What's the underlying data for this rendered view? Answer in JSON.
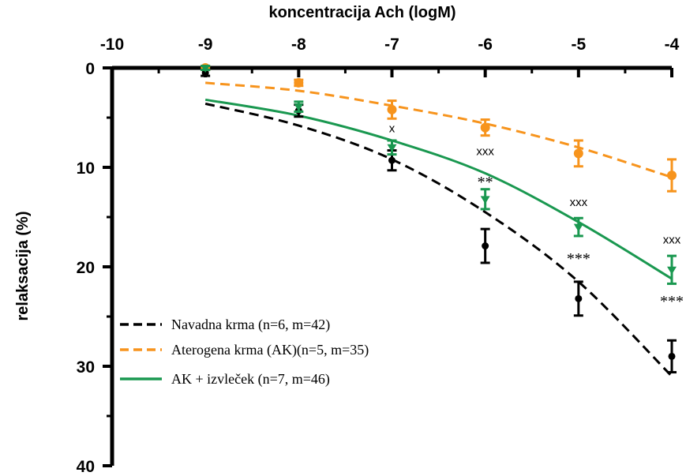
{
  "chart_data": {
    "type": "line",
    "xlabel": "koncentracija Ach (logM)",
    "ylabel": "relaksacija (%)",
    "xlim": [
      -10,
      -4
    ],
    "ylim": [
      0,
      40
    ],
    "y_inverted": true,
    "x_axis_position": "top",
    "xticks": [
      -10,
      -9,
      -8,
      -7,
      -6,
      -5,
      -4
    ],
    "yticks": [
      0,
      10,
      20,
      30,
      40
    ],
    "legend_position": "bottom-left",
    "series": [
      {
        "name": "Navadna krma (n=6, m=42)",
        "color": "#000000",
        "line_style": "dashed",
        "x": [
          -9,
          -8,
          -7,
          -6,
          -5,
          -4
        ],
        "y": [
          0.5,
          4.3,
          9.3,
          17.9,
          23.2,
          29.0
        ],
        "err": [
          0.3,
          0.6,
          1.0,
          1.7,
          1.7,
          1.6
        ],
        "fit_y": [
          3.6,
          5.8,
          9.2,
          14.5,
          21.5,
          31.0
        ]
      },
      {
        "name": "Aterogena krma (AK)(n=5, m=35)",
        "color": "#f7941d",
        "line_style": "dashed",
        "x": [
          -9,
          -8,
          -7,
          -6,
          -5,
          -4
        ],
        "y": [
          0.0,
          1.5,
          4.2,
          6.0,
          8.6,
          10.8
        ],
        "err": [
          0.2,
          0.3,
          0.9,
          0.8,
          1.3,
          1.6
        ],
        "fit_y": [
          1.5,
          2.3,
          3.8,
          5.6,
          8.0,
          11.0
        ]
      },
      {
        "name": "AK + izvleček (n=7, m=46)",
        "color": "#1a9850",
        "line_style": "solid",
        "x": [
          -9,
          -8,
          -7,
          -6,
          -5,
          -4
        ],
        "y": [
          0.0,
          3.9,
          8.0,
          13.2,
          16.0,
          20.3
        ],
        "err": [
          0.2,
          0.5,
          0.7,
          1.0,
          0.9,
          1.4
        ],
        "fit_y": [
          3.2,
          4.8,
          7.3,
          10.6,
          15.5,
          21.2
        ]
      }
    ],
    "annotations": [
      {
        "x": -7,
        "y": 6.0,
        "text": "x",
        "style": "x"
      },
      {
        "x": -6,
        "y": 8.3,
        "text": "xxx",
        "style": "x"
      },
      {
        "x": -6,
        "y": 11.5,
        "text": "**",
        "style": "star"
      },
      {
        "x": -5,
        "y": 13.4,
        "text": "xxx",
        "style": "x"
      },
      {
        "x": -5,
        "y": 19.2,
        "text": "***",
        "style": "star"
      },
      {
        "x": -4,
        "y": 17.2,
        "text": "xxx",
        "style": "x"
      },
      {
        "x": -4,
        "y": 23.5,
        "text": "***",
        "style": "star"
      }
    ]
  }
}
